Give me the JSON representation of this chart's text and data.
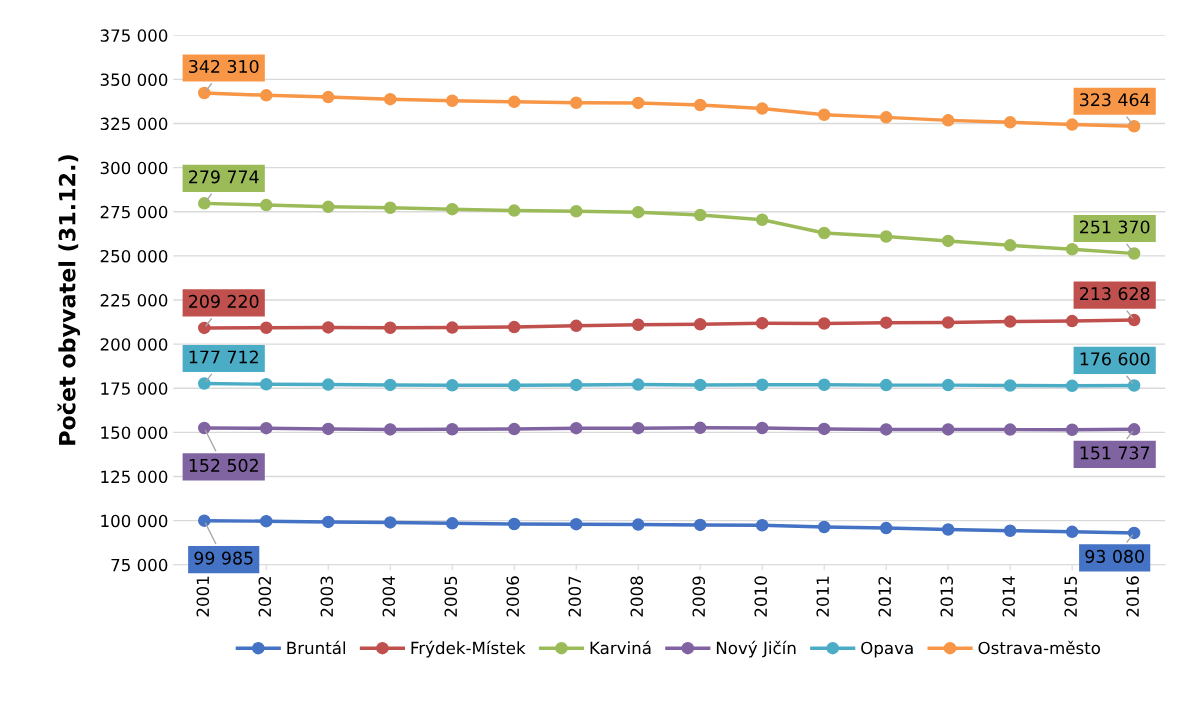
{
  "chart_data": {
    "type": "line",
    "ylabel": "Počet obyvatel (31.12.)",
    "categories": [
      "2001",
      "2002",
      "2003",
      "2004",
      "2005",
      "2006",
      "2007",
      "2008",
      "2009",
      "2010",
      "2011",
      "2012",
      "2013",
      "2014",
      "2015",
      "2016"
    ],
    "series": [
      {
        "name": "Bruntál",
        "color": "#4472c4",
        "values": [
          99985,
          99700,
          99300,
          99000,
          98500,
          98100,
          98000,
          97800,
          97600,
          97400,
          96400,
          95800,
          95000,
          94300,
          93700,
          93080
        ],
        "value_labels": [
          "99 985",
          null,
          null,
          null,
          null,
          null,
          null,
          null,
          null,
          null,
          null,
          null,
          null,
          null,
          null,
          "93 080"
        ]
      },
      {
        "name": "Frýdek-Místek",
        "color": "#c0504d",
        "values": [
          209220,
          209300,
          209500,
          209300,
          209400,
          209700,
          210400,
          211000,
          211300,
          211900,
          211700,
          212200,
          212300,
          212800,
          213100,
          213628
        ],
        "value_labels": [
          "209 220",
          null,
          null,
          null,
          null,
          null,
          null,
          null,
          null,
          null,
          null,
          null,
          null,
          null,
          null,
          "213 628"
        ]
      },
      {
        "name": "Karviná",
        "color": "#9bbb59",
        "values": [
          279774,
          278800,
          277800,
          277300,
          276500,
          275700,
          275300,
          274800,
          273200,
          270500,
          263000,
          261000,
          258500,
          256000,
          253800,
          251370
        ],
        "value_labels": [
          "279 774",
          null,
          null,
          null,
          null,
          null,
          null,
          null,
          null,
          null,
          null,
          null,
          null,
          null,
          null,
          "251 370"
        ]
      },
      {
        "name": "Nový Jičín",
        "color": "#8064a2",
        "values": [
          152502,
          152400,
          152000,
          151700,
          151800,
          151900,
          152400,
          152400,
          152600,
          152500,
          152000,
          151700,
          151700,
          151600,
          151500,
          151737
        ],
        "value_labels": [
          "152 502",
          null,
          null,
          null,
          null,
          null,
          null,
          null,
          null,
          null,
          null,
          null,
          null,
          null,
          null,
          "151 737"
        ]
      },
      {
        "name": "Opava",
        "color": "#4bacc6",
        "values": [
          177712,
          177300,
          177100,
          176900,
          176700,
          176700,
          176900,
          177100,
          176900,
          177000,
          177000,
          176800,
          176800,
          176600,
          176400,
          176600
        ],
        "value_labels": [
          "177 712",
          null,
          null,
          null,
          null,
          null,
          null,
          null,
          null,
          null,
          null,
          null,
          null,
          null,
          null,
          "176 600"
        ]
      },
      {
        "name": "Ostrava-město",
        "color": "#f79646",
        "values": [
          342310,
          341000,
          340000,
          338800,
          337900,
          337300,
          336800,
          336700,
          335500,
          333500,
          330000,
          328500,
          326800,
          325700,
          324400,
          323464
        ],
        "value_labels": [
          "342 310",
          null,
          null,
          null,
          null,
          null,
          null,
          null,
          null,
          null,
          null,
          null,
          null,
          null,
          null,
          "323 464"
        ]
      }
    ],
    "ylim": [
      75000,
      375000
    ],
    "yticks": [
      {
        "value": 75000,
        "label": "75 000"
      },
      {
        "value": 100000,
        "label": "100 000"
      },
      {
        "value": 125000,
        "label": "125 000"
      },
      {
        "value": 150000,
        "label": "150 000"
      },
      {
        "value": 175000,
        "label": "175 000"
      },
      {
        "value": 200000,
        "label": "200 000"
      },
      {
        "value": 225000,
        "label": "225 000"
      },
      {
        "value": 250000,
        "label": "250 000"
      },
      {
        "value": 275000,
        "label": "275 000"
      },
      {
        "value": 300000,
        "label": "300 000"
      },
      {
        "value": 325000,
        "label": "325 000"
      },
      {
        "value": 350000,
        "label": "350 000"
      },
      {
        "value": 375000,
        "label": "375 000"
      }
    ],
    "grid": "y",
    "legend": "bottom",
    "marker": "circle",
    "line_style": "solid"
  }
}
